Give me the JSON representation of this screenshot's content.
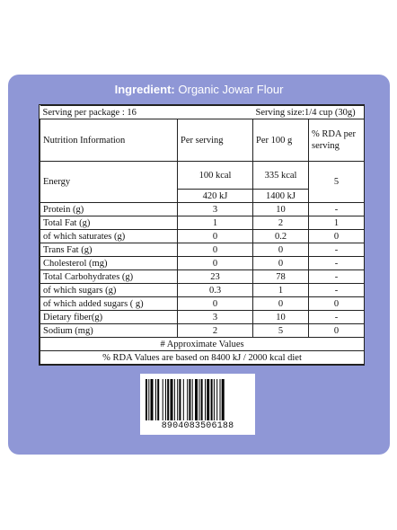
{
  "ingredient": {
    "label": "Ingredient:",
    "value": "Organic Jowar Flour"
  },
  "serving": {
    "per_package": "Serving per package : 16",
    "size": "Serving size:1/4 cup (30g)"
  },
  "headers": {
    "info": "Nutrition Information",
    "per_serving": "Per serving",
    "per_100g": "Per 100 g",
    "rda": "% RDA per serving"
  },
  "energy": {
    "label": "Energy",
    "kcal_serving": "100 kcal",
    "kcal_100g": "335 kcal",
    "kj_serving": "420 kJ",
    "kj_100g": "1400 kJ",
    "rda": "5"
  },
  "rows": [
    {
      "name": "Protein (g)",
      "serving": "3",
      "per100": "10",
      "rda": "-"
    },
    {
      "name": "Total Fat (g)",
      "serving": "1",
      "per100": "2",
      "rda": "1"
    },
    {
      "name": "of which saturates (g)",
      "serving": "0",
      "per100": "0.2",
      "rda": "0"
    },
    {
      "name": "Trans Fat (g)",
      "serving": "0",
      "per100": "0",
      "rda": "-"
    },
    {
      "name": "Cholesterol (mg)",
      "serving": "0",
      "per100": "0",
      "rda": "-"
    },
    {
      "name": "Total Carbohydrates (g)",
      "serving": "23",
      "per100": "78",
      "rda": "-"
    },
    {
      "name": "of which sugars (g)",
      "serving": "0.3",
      "per100": "1",
      "rda": "-"
    },
    {
      "name": "of which added sugars ( g)",
      "serving": "0",
      "per100": "0",
      "rda": "0"
    },
    {
      "name": "Dietary fiber(g)",
      "serving": "3",
      "per100": "10",
      "rda": "-"
    },
    {
      "name": "Sodium  (mg)",
      "serving": "2",
      "per100": "5",
      "rda": "0"
    }
  ],
  "notes": {
    "approx": "# Approximate Values",
    "rda_basis": "% RDA Values are based on 8400 kJ / 2000 kcal diet"
  },
  "barcode": {
    "number": "8904083506188"
  },
  "colors": {
    "panel": "#8f97d6",
    "title_text": "#ffffff"
  }
}
